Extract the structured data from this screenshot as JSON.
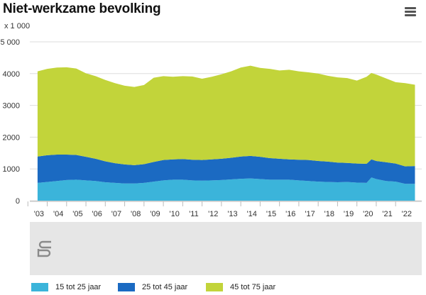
{
  "header": {
    "title": "Niet-werkzame bevolking",
    "unit": "x 1 000",
    "menu_icon": "hamburger-menu-icon"
  },
  "colors": {
    "s15": "#3bb4da",
    "s25": "#1b6ac2",
    "s45": "#c2d43a",
    "grid": "#dddddd",
    "navigator": "#e6e6e6"
  },
  "logo": {
    "name": "cbs-logo-icon"
  },
  "chart_data": {
    "type": "area",
    "stacking": "normal",
    "title": "Niet-werkzame bevolking",
    "ylabel": "x 1 000",
    "ylim": [
      0,
      5000
    ],
    "yticks": [
      0,
      1000,
      2000,
      3000,
      4000,
      5000
    ],
    "ytick_labels": [
      "0",
      "1000",
      "2000",
      "3000",
      "4000",
      "5 000"
    ],
    "x_labels": [
      "'03",
      "'04",
      "'05",
      "'06",
      "'07",
      "'08",
      "'09",
      "'10",
      "'11",
      "'12",
      "'13",
      "'14",
      "'15",
      "'16",
      "'17",
      "'18",
      "'19",
      "'20",
      "'21",
      "'22"
    ],
    "x": [
      2003.0,
      2003.5,
      2004.0,
      2004.5,
      2005.0,
      2005.5,
      2006.0,
      2006.5,
      2007.0,
      2007.5,
      2008.0,
      2008.5,
      2009.0,
      2009.5,
      2010.0,
      2010.5,
      2011.0,
      2011.5,
      2012.0,
      2012.5,
      2013.0,
      2013.5,
      2014.0,
      2014.5,
      2015.0,
      2015.5,
      2016.0,
      2016.5,
      2017.0,
      2017.5,
      2018.0,
      2018.5,
      2019.0,
      2019.5,
      2020.0,
      2020.25,
      2020.5,
      2021.0,
      2021.5,
      2022.0,
      2022.5
    ],
    "series": [
      {
        "name": "15 tot 25 jaar",
        "values": [
          560,
          590,
          620,
          650,
          660,
          640,
          620,
          580,
          560,
          540,
          540,
          560,
          600,
          640,
          660,
          660,
          640,
          630,
          640,
          650,
          670,
          690,
          700,
          680,
          660,
          660,
          660,
          640,
          620,
          600,
          590,
          580,
          590,
          570,
          560,
          730,
          680,
          620,
          600,
          530,
          530
        ]
      },
      {
        "name": "25 tot 45 jaar",
        "values": [
          830,
          840,
          830,
          800,
          780,
          740,
          700,
          660,
          620,
          600,
          580,
          590,
          620,
          640,
          640,
          650,
          650,
          650,
          660,
          670,
          680,
          700,
          710,
          700,
          680,
          660,
          640,
          650,
          660,
          650,
          640,
          620,
          600,
          600,
          600,
          570,
          570,
          590,
          570,
          550,
          560
        ]
      },
      {
        "name": "45 tot 75 jaar",
        "values": [
          2680,
          2720,
          2740,
          2750,
          2720,
          2630,
          2600,
          2560,
          2520,
          2480,
          2460,
          2490,
          2650,
          2640,
          2600,
          2610,
          2620,
          2560,
          2600,
          2660,
          2720,
          2800,
          2840,
          2800,
          2810,
          2780,
          2820,
          2780,
          2760,
          2750,
          2700,
          2680,
          2670,
          2610,
          2740,
          2720,
          2720,
          2640,
          2560,
          2620,
          2560
        ]
      }
    ],
    "legend": [
      "15 tot 25 jaar",
      "25 tot 45 jaar",
      "45 tot 75 jaar"
    ],
    "legend_position": "bottom"
  }
}
